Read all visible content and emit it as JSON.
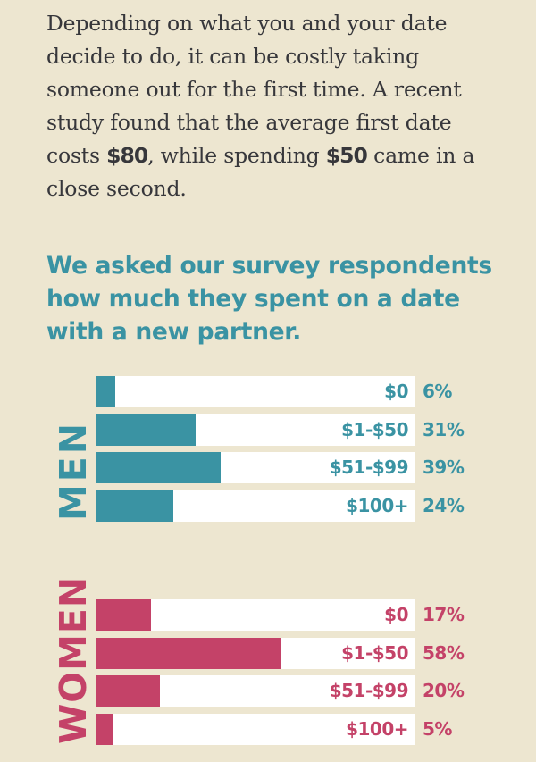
{
  "intro": {
    "part1": "Depending on what you and your date decide to do, it can be costly taking someone out for the first time. A recent study found that the average first date costs ",
    "amount1": "$80",
    "part2": ", while spending ",
    "amount2": "$50",
    "part3": " came in a close second."
  },
  "headline": "We asked our survey respondents how much they spent on a date with a new partner.",
  "colors": {
    "background": "#ede6d0",
    "men": "#3a93a3",
    "women": "#c44268",
    "track": "#ffffff",
    "body_text": "#37373b"
  },
  "men": {
    "label": "MEN",
    "rows": [
      {
        "range": "$0",
        "pct_label": "6%",
        "value": 6
      },
      {
        "range": "$1-$50",
        "pct_label": "31%",
        "value": 31
      },
      {
        "range": "$51-$99",
        "pct_label": "39%",
        "value": 39
      },
      {
        "range": "$100+",
        "pct_label": "24%",
        "value": 24
      }
    ]
  },
  "women": {
    "label": "WOMEN",
    "rows": [
      {
        "range": "$0",
        "pct_label": "17%",
        "value": 17
      },
      {
        "range": "$1-$50",
        "pct_label": "58%",
        "value": 58
      },
      {
        "range": "$51-$99",
        "pct_label": "20%",
        "value": 20
      },
      {
        "range": "$100+",
        "pct_label": "5%",
        "value": 5
      }
    ]
  },
  "chart_data": [
    {
      "type": "bar",
      "title": "MEN",
      "orientation": "horizontal",
      "categories": [
        "$0",
        "$1-$50",
        "$51-$99",
        "$100+"
      ],
      "values": [
        6,
        31,
        39,
        24
      ],
      "unit": "%",
      "color": "#3a93a3"
    },
    {
      "type": "bar",
      "title": "WOMEN",
      "orientation": "horizontal",
      "categories": [
        "$0",
        "$1-$50",
        "$51-$99",
        "$100+"
      ],
      "values": [
        17,
        58,
        20,
        5
      ],
      "unit": "%",
      "color": "#c44268"
    }
  ]
}
